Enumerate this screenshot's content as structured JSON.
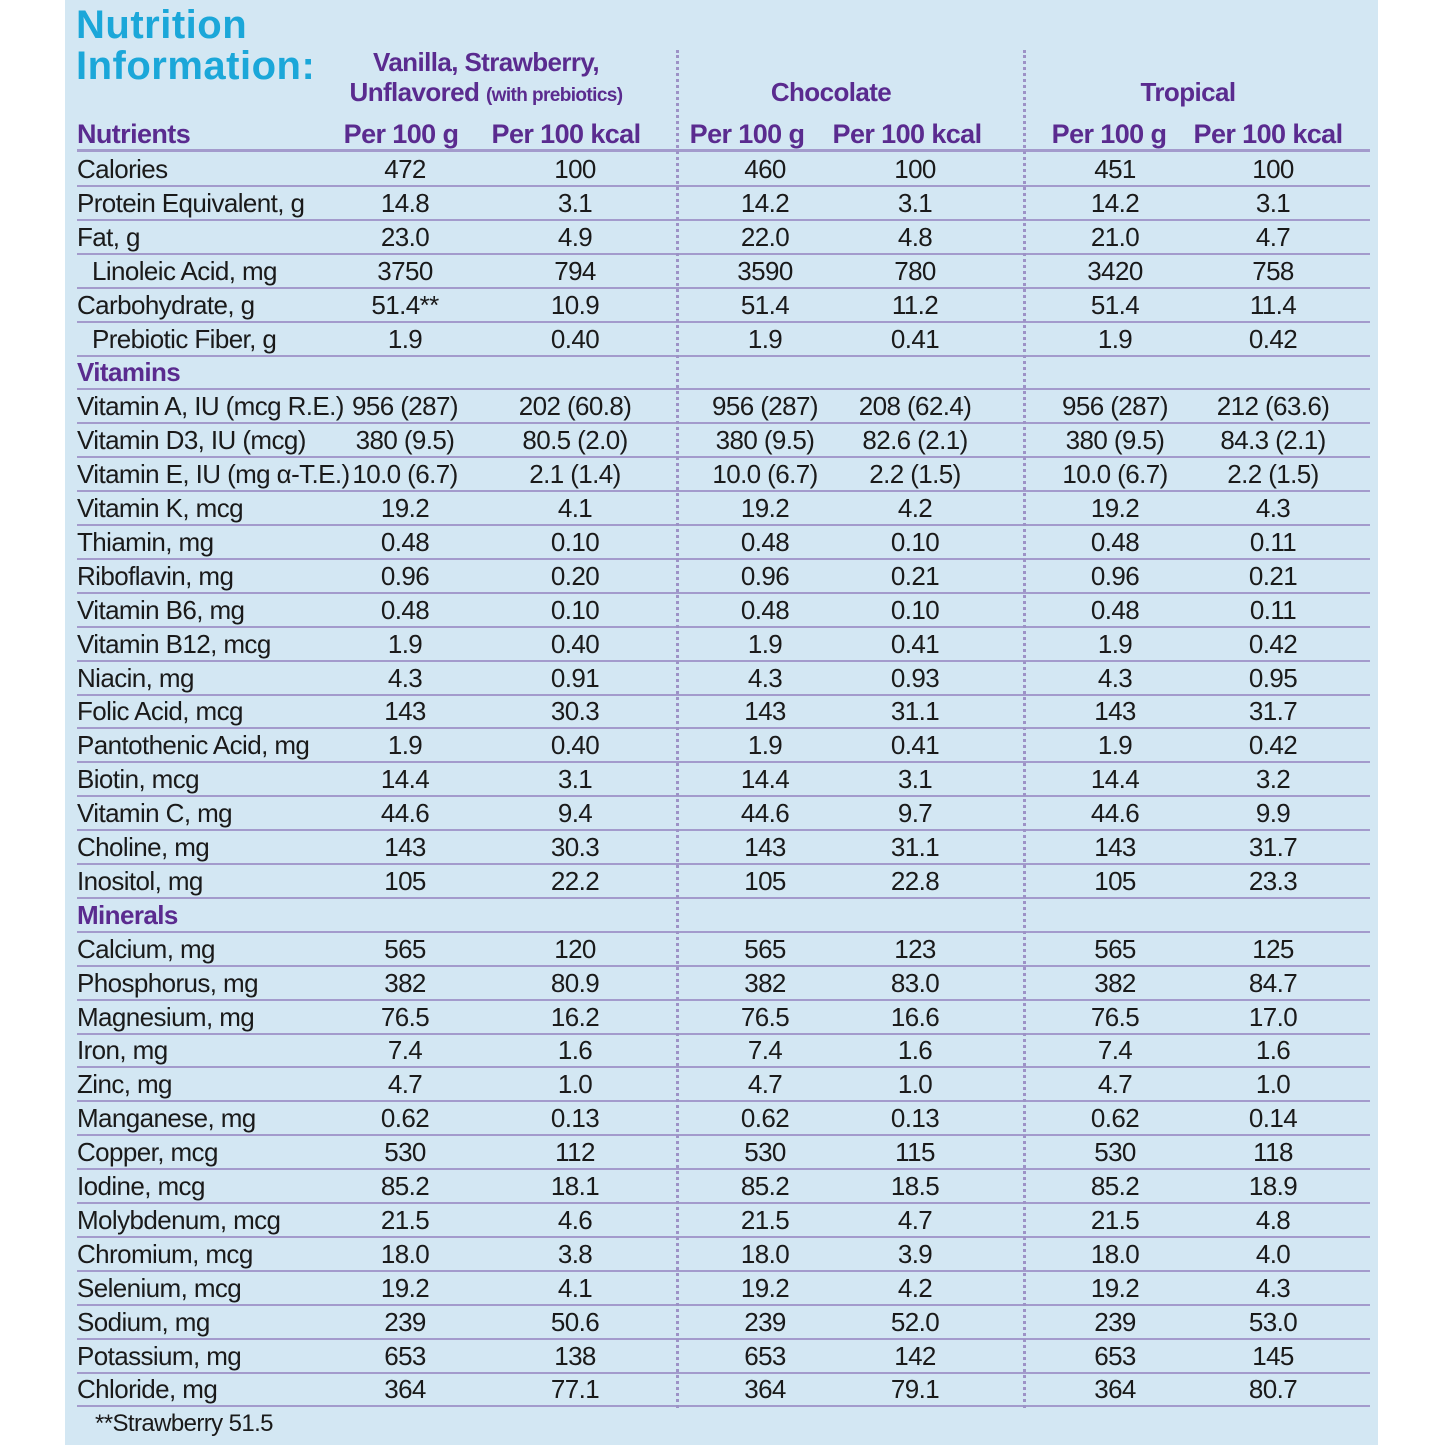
{
  "title": {
    "line1": "Nutrition",
    "line2": "Information:"
  },
  "groups": [
    {
      "line1": "Vanilla, Strawberry,",
      "line2": "Unflavored",
      "note": "(with prebiotics)"
    },
    {
      "line1": "Chocolate"
    },
    {
      "line1": "Tropical"
    }
  ],
  "column_headers": [
    "Nutrients",
    "Per 100 g",
    "Per 100 kcal",
    "Per 100 g",
    "Per 100 kcal",
    "Per 100 g",
    "Per 100 kcal"
  ],
  "rows": [
    {
      "name": "Calories",
      "values": [
        "472",
        "100",
        "460",
        "100",
        "451",
        "100"
      ]
    },
    {
      "name": "Protein Equivalent, g",
      "values": [
        "14.8",
        "3.1",
        "14.2",
        "3.1",
        "14.2",
        "3.1"
      ]
    },
    {
      "name": "Fat, g",
      "values": [
        "23.0",
        "4.9",
        "22.0",
        "4.8",
        "21.0",
        "4.7"
      ]
    },
    {
      "name": "Linoleic Acid, mg",
      "indent": true,
      "values": [
        "3750",
        "794",
        "3590",
        "780",
        "3420",
        "758"
      ]
    },
    {
      "name": "Carbohydrate, g",
      "values": [
        "51.4**",
        "10.9",
        "51.4",
        "11.2",
        "51.4",
        "11.4"
      ]
    },
    {
      "name": "Prebiotic Fiber, g",
      "indent": true,
      "values": [
        "1.9",
        "0.40",
        "1.9",
        "0.41",
        "1.9",
        "0.42"
      ]
    },
    {
      "name": "Vitamins",
      "section": true,
      "values": []
    },
    {
      "name": "Vitamin A, IU (mcg R.E.)",
      "values": [
        "956 (287)",
        "202 (60.8)",
        "956 (287)",
        "208 (62.4)",
        "956 (287)",
        "212 (63.6)"
      ]
    },
    {
      "name": "Vitamin D3, IU (mcg)",
      "values": [
        "380 (9.5)",
        "80.5 (2.0)",
        "380 (9.5)",
        "82.6 (2.1)",
        "380 (9.5)",
        "84.3 (2.1)"
      ]
    },
    {
      "name": "Vitamin E, IU (mg α-T.E.)",
      "values": [
        "10.0 (6.7)",
        "2.1 (1.4)",
        "10.0 (6.7)",
        "2.2 (1.5)",
        "10.0 (6.7)",
        "2.2 (1.5)"
      ]
    },
    {
      "name": "Vitamin K, mcg",
      "values": [
        "19.2",
        "4.1",
        "19.2",
        "4.2",
        "19.2",
        "4.3"
      ]
    },
    {
      "name": "Thiamin, mg",
      "values": [
        "0.48",
        "0.10",
        "0.48",
        "0.10",
        "0.48",
        "0.11"
      ]
    },
    {
      "name": "Riboflavin, mg",
      "values": [
        "0.96",
        "0.20",
        "0.96",
        "0.21",
        "0.96",
        "0.21"
      ]
    },
    {
      "name": "Vitamin B6, mg",
      "values": [
        "0.48",
        "0.10",
        "0.48",
        "0.10",
        "0.48",
        "0.11"
      ]
    },
    {
      "name": "Vitamin B12, mcg",
      "values": [
        "1.9",
        "0.40",
        "1.9",
        "0.41",
        "1.9",
        "0.42"
      ]
    },
    {
      "name": "Niacin, mg",
      "values": [
        "4.3",
        "0.91",
        "4.3",
        "0.93",
        "4.3",
        "0.95"
      ]
    },
    {
      "name": "Folic Acid, mcg",
      "values": [
        "143",
        "30.3",
        "143",
        "31.1",
        "143",
        "31.7"
      ]
    },
    {
      "name": "Pantothenic Acid, mg",
      "values": [
        "1.9",
        "0.40",
        "1.9",
        "0.41",
        "1.9",
        "0.42"
      ]
    },
    {
      "name": "Biotin, mcg",
      "values": [
        "14.4",
        "3.1",
        "14.4",
        "3.1",
        "14.4",
        "3.2"
      ]
    },
    {
      "name": "Vitamin C, mg",
      "values": [
        "44.6",
        "9.4",
        "44.6",
        "9.7",
        "44.6",
        "9.9"
      ]
    },
    {
      "name": "Choline, mg",
      "values": [
        "143",
        "30.3",
        "143",
        "31.1",
        "143",
        "31.7"
      ]
    },
    {
      "name": "Inositol, mg",
      "values": [
        "105",
        "22.2",
        "105",
        "22.8",
        "105",
        "23.3"
      ]
    },
    {
      "name": "Minerals",
      "section": true,
      "values": []
    },
    {
      "name": "Calcium, mg",
      "values": [
        "565",
        "120",
        "565",
        "123",
        "565",
        "125"
      ]
    },
    {
      "name": "Phosphorus, mg",
      "values": [
        "382",
        "80.9",
        "382",
        "83.0",
        "382",
        "84.7"
      ]
    },
    {
      "name": "Magnesium, mg",
      "values": [
        "76.5",
        "16.2",
        "76.5",
        "16.6",
        "76.5",
        "17.0"
      ]
    },
    {
      "name": "Iron, mg",
      "values": [
        "7.4",
        "1.6",
        "7.4",
        "1.6",
        "7.4",
        "1.6"
      ]
    },
    {
      "name": "Zinc, mg",
      "values": [
        "4.7",
        "1.0",
        "4.7",
        "1.0",
        "4.7",
        "1.0"
      ]
    },
    {
      "name": "Manganese, mg",
      "values": [
        "0.62",
        "0.13",
        "0.62",
        "0.13",
        "0.62",
        "0.14"
      ]
    },
    {
      "name": "Copper, mcg",
      "values": [
        "530",
        "112",
        "530",
        "115",
        "530",
        "118"
      ]
    },
    {
      "name": "Iodine, mcg",
      "values": [
        "85.2",
        "18.1",
        "85.2",
        "18.5",
        "85.2",
        "18.9"
      ]
    },
    {
      "name": "Molybdenum, mcg",
      "values": [
        "21.5",
        "4.6",
        "21.5",
        "4.7",
        "21.5",
        "4.8"
      ]
    },
    {
      "name": "Chromium, mcg",
      "values": [
        "18.0",
        "3.8",
        "18.0",
        "3.9",
        "18.0",
        "4.0"
      ]
    },
    {
      "name": "Selenium, mcg",
      "values": [
        "19.2",
        "4.1",
        "19.2",
        "4.2",
        "19.2",
        "4.3"
      ]
    },
    {
      "name": "Sodium, mg",
      "values": [
        "239",
        "50.6",
        "239",
        "52.0",
        "239",
        "53.0"
      ]
    },
    {
      "name": "Potassium, mg",
      "values": [
        "653",
        "138",
        "653",
        "142",
        "653",
        "145"
      ]
    },
    {
      "name": "Chloride, mg",
      "values": [
        "364",
        "77.1",
        "364",
        "79.1",
        "364",
        "80.7"
      ]
    }
  ],
  "footnote": "**Strawberry 51.5",
  "colors": {
    "background": "#d3e7f3",
    "title": "#1ba7d9",
    "heading": "#5a2b8f",
    "rule": "#a39bcc"
  }
}
